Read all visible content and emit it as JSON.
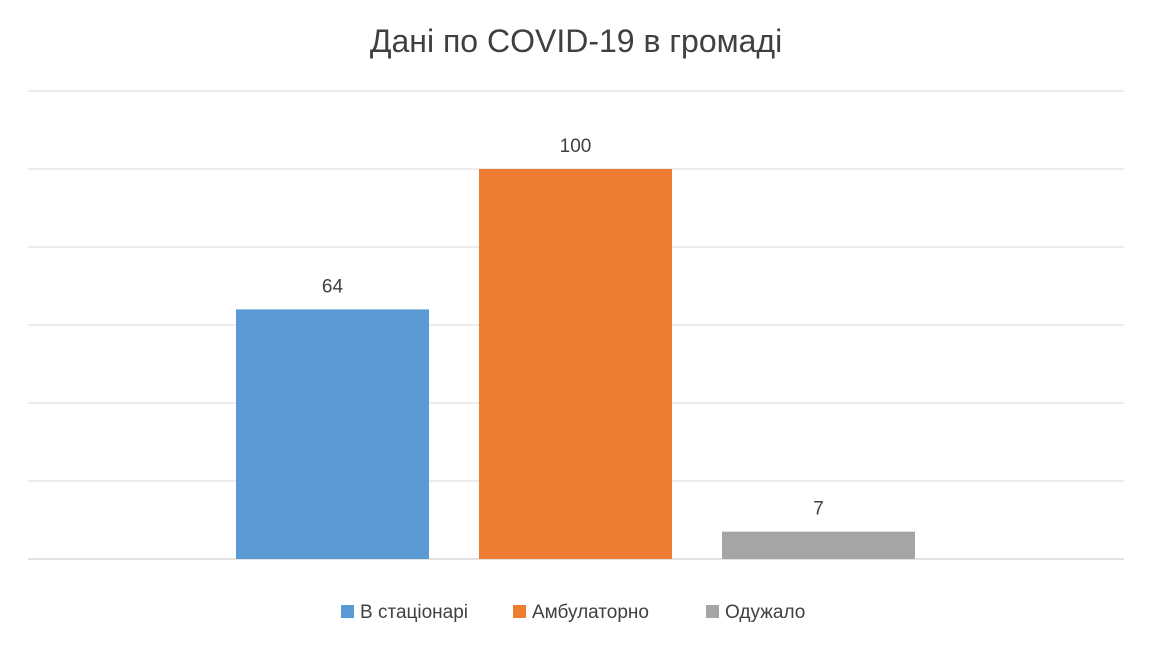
{
  "chart_data": {
    "type": "bar",
    "title": "Дані по COVID-19 в громаді",
    "categories": [
      "В стаціонарі",
      "Амбулаторно",
      "Одужало"
    ],
    "values": [
      64,
      100,
      7
    ],
    "colors": [
      "#5b9bd5",
      "#ed7d31",
      "#a5a5a5"
    ],
    "ylim": [
      0,
      120
    ],
    "grid": true,
    "legend_position": "bottom",
    "gridline_color": "#d9d9d9",
    "text_color": "#404040"
  }
}
